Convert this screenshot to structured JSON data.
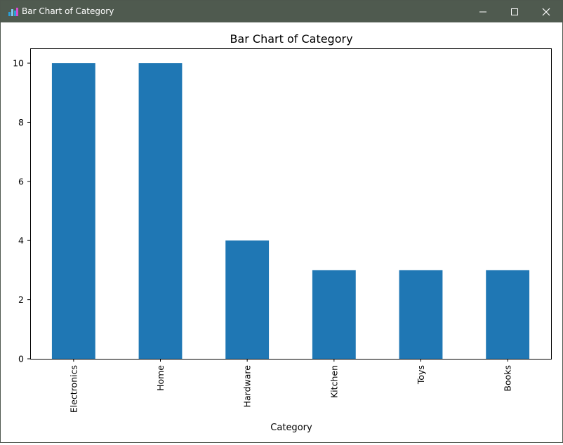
{
  "window": {
    "title": "Bar Chart of Category",
    "controls": [
      "minimize",
      "maximize",
      "close"
    ],
    "icon": "matplotlib-figure-icon"
  },
  "chart_data": {
    "type": "bar",
    "title": "Bar Chart of Category",
    "xlabel": "Category",
    "ylabel": "",
    "categories": [
      "Electronics",
      "Home",
      "Hardware",
      "Kitchen",
      "Toys",
      "Books"
    ],
    "values": [
      10,
      10,
      4,
      3,
      3,
      3
    ],
    "ylim": [
      0,
      10.5
    ],
    "yticks": [
      0,
      2,
      4,
      6,
      8,
      10
    ],
    "bar_color": "#1f77b4",
    "grid": false,
    "legend": "none"
  }
}
